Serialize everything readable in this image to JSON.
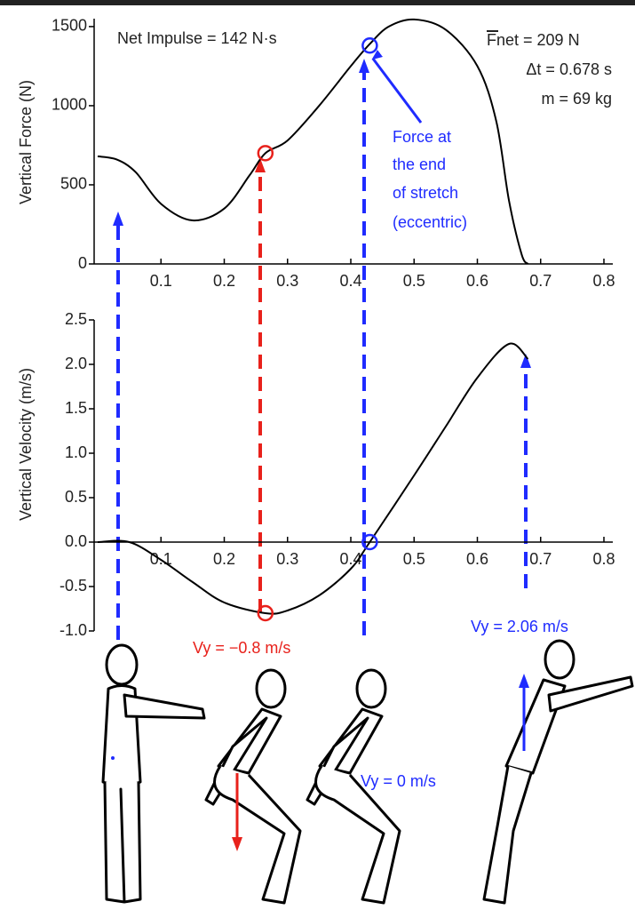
{
  "chart_data": [
    {
      "type": "line",
      "ylabel": "Vertical Force (N)",
      "xlim": [
        0,
        0.8
      ],
      "ylim": [
        0,
        1550
      ],
      "xticks": [
        0.1,
        0.2,
        0.3,
        0.4,
        0.5,
        0.6,
        0.7,
        0.8
      ],
      "yticks": [
        0,
        500,
        1000,
        1500
      ],
      "x": [
        0,
        0.03,
        0.06,
        0.1,
        0.15,
        0.2,
        0.24,
        0.265,
        0.3,
        0.35,
        0.4,
        0.43,
        0.46,
        0.5,
        0.55,
        0.6,
        0.63,
        0.65,
        0.67,
        0.68
      ],
      "series": [
        {
          "color": "#000000",
          "values": [
            680,
            660,
            580,
            380,
            275,
            350,
            560,
            700,
            780,
            1000,
            1250,
            1390,
            1500,
            1545,
            1480,
            1250,
            900,
            400,
            60,
            0
          ]
        }
      ],
      "points": [
        {
          "x": 0.265,
          "y": 700,
          "color": "#e8211b"
        },
        {
          "x": 0.43,
          "y": 1380,
          "color": "#1f2bff"
        }
      ],
      "annotations": [
        "Net Impulse = 142 N·s",
        "Fnet = 209 N",
        "Δt = 0.678 s",
        "m = 69 kg"
      ],
      "callout": [
        "Force at",
        "the end",
        "of stretch",
        "(eccentric)"
      ]
    },
    {
      "type": "line",
      "ylabel": "Vertical Velocity (m/s)",
      "xlim": [
        0,
        0.8
      ],
      "ylim": [
        -1.0,
        2.5
      ],
      "xticks": [
        0.1,
        0.2,
        0.3,
        0.4,
        0.5,
        0.6,
        0.7,
        0.8
      ],
      "yticks": [
        2.5,
        {
          "value": 2,
          "label": "2.0"
        },
        1.5,
        {
          "value": 1,
          "label": "1.0"
        },
        0.5,
        {
          "value": 0,
          "label": "0.0"
        },
        -0.5,
        {
          "value": -1,
          "label": "-1.0"
        }
      ],
      "x": [
        0,
        0.05,
        0.1,
        0.15,
        0.2,
        0.265,
        0.3,
        0.35,
        0.4,
        0.43,
        0.5,
        0.55,
        0.6,
        0.65,
        0.68
      ],
      "series": [
        {
          "color": "#000000",
          "values": [
            0,
            0,
            -0.2,
            -0.45,
            -0.68,
            -0.8,
            -0.77,
            -0.6,
            -0.3,
            0,
            0.75,
            1.3,
            1.85,
            2.23,
            2.06
          ]
        }
      ],
      "points": [
        {
          "x": 0.265,
          "y": -0.8,
          "color": "#e8211b"
        },
        {
          "x": 0.43,
          "y": 0,
          "color": "#1f2bff"
        }
      ],
      "annotations": [
        "Vy = −0.8 m/s",
        "Vy = 0 m/s",
        "Vy = 2.06 m/s"
      ]
    }
  ]
}
